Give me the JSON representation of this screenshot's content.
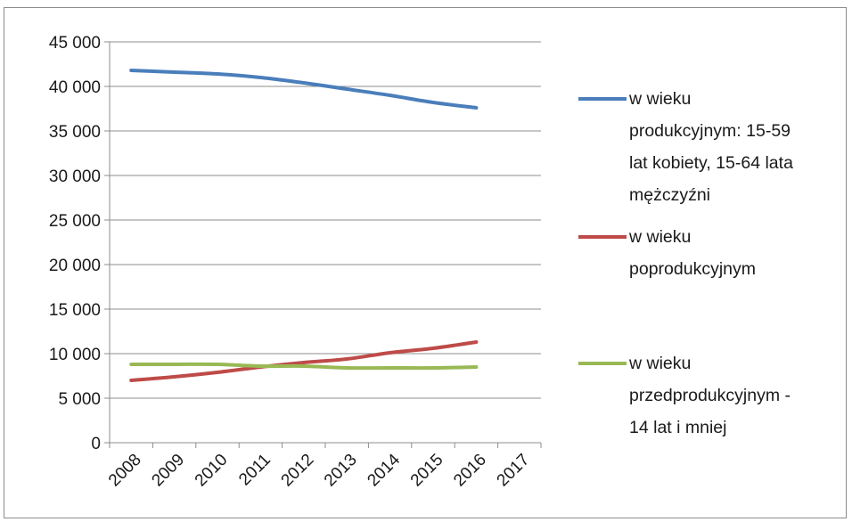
{
  "chart_data": {
    "type": "line",
    "title": "",
    "xlabel": "",
    "ylabel": "",
    "categories": [
      "2008",
      "2009",
      "2010",
      "2011",
      "2012",
      "2013",
      "2014",
      "2015",
      "2016",
      "2017"
    ],
    "ylim": [
      0,
      45000
    ],
    "yticks": [
      0,
      5000,
      10000,
      15000,
      20000,
      25000,
      30000,
      35000,
      40000,
      45000
    ],
    "ytick_labels": [
      "0",
      "5 000",
      "10 000",
      "15 000",
      "20 000",
      "25 000",
      "30 000",
      "35 000",
      "40 000",
      "45 000"
    ],
    "grid": true,
    "legend_position": "right",
    "series": [
      {
        "name": "w wieku produkcyjnym: 15-59 lat kobiety, 15-64 lata mężczyźni",
        "legend_lines": [
          "w wieku",
          "produkcyjnym: 15-59",
          "lat kobiety, 15-64 lata",
          "mężczyźni"
        ],
        "color": "#4a7ebb",
        "values": [
          41800,
          41600,
          41400,
          41000,
          40400,
          39700,
          39000,
          38200,
          37600,
          null
        ]
      },
      {
        "name": "w wieku poprodukcyjnym",
        "legend_lines": [
          "w wieku",
          "poprodukcyjnym"
        ],
        "color": "#be4b48",
        "values": [
          7000,
          7400,
          7900,
          8500,
          9000,
          9400,
          10100,
          10600,
          11300,
          null
        ]
      },
      {
        "name": "w wieku przedprodukcyjnym - 14 lat i mniej",
        "legend_lines": [
          "w wieku",
          "przedprodukcyjnym -",
          "14 lat i mniej"
        ],
        "color": "#98b954",
        "values": [
          8800,
          8800,
          8800,
          8600,
          8600,
          8400,
          8400,
          8400,
          8500,
          null
        ]
      }
    ]
  }
}
